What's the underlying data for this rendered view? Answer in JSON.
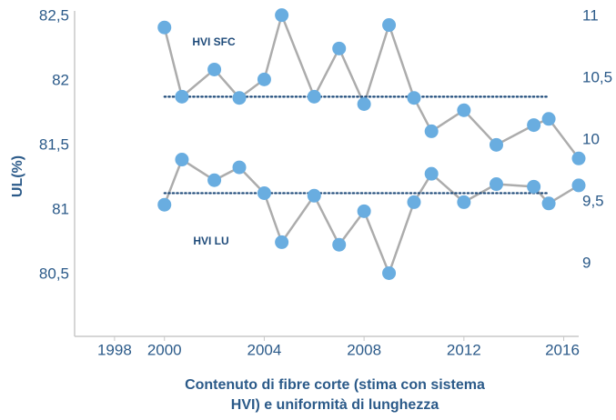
{
  "chart_data": {
    "type": "line",
    "title": [
      "Contenuto di fibre corte (stima con sistema",
      "HVI) e uniformità di lunghezza"
    ],
    "ylabel": "UL(%)",
    "xlim": [
      1996.4,
      2016.6
    ],
    "xticks": [
      1998,
      2000,
      2004,
      2008,
      2012,
      2016
    ],
    "ylim": [
      80.02,
      82.5
    ],
    "yticks": [
      {
        "value": 80.5,
        "label": "80,5"
      },
      81,
      {
        "value": 81.5,
        "label": "81,5"
      },
      82,
      {
        "value": 82.5,
        "label": "82,5"
      }
    ],
    "y2lim": [
      8.41,
      11
    ],
    "y2ticks": [
      9,
      {
        "value": 9.5,
        "label": "9,5"
      },
      10,
      {
        "value": 10.5,
        "label": "10,5"
      },
      11
    ],
    "grid": false,
    "line_color": "#acacac",
    "mean_color": "#1f4b7a",
    "x": [
      2000,
      2000.7,
      2002,
      2003,
      2004,
      2004.7,
      2006,
      2007,
      2008,
      2009,
      2010,
      2010.7,
      2012,
      2013.3,
      2014.8,
      2015.4,
      2016.6
    ],
    "series": [
      {
        "name": "HVI SFC",
        "axis": "y2",
        "color": "#69ade0",
        "mean": 10.35,
        "values": [
          10.91,
          10.35,
          10.57,
          10.34,
          10.49,
          11.01,
          10.35,
          10.74,
          10.29,
          10.93,
          10.34,
          10.07,
          10.24,
          9.96,
          10.12,
          10.17,
          9.85
        ]
      },
      {
        "name": "HVI LU",
        "axis": "y",
        "color": "#69ade0",
        "mean": 81.13,
        "values": [
          81.04,
          81.39,
          81.23,
          81.33,
          81.13,
          80.75,
          81.11,
          80.73,
          80.99,
          80.51,
          81.06,
          81.28,
          81.06,
          81.2,
          81.18,
          81.05,
          81.19
        ]
      }
    ]
  }
}
